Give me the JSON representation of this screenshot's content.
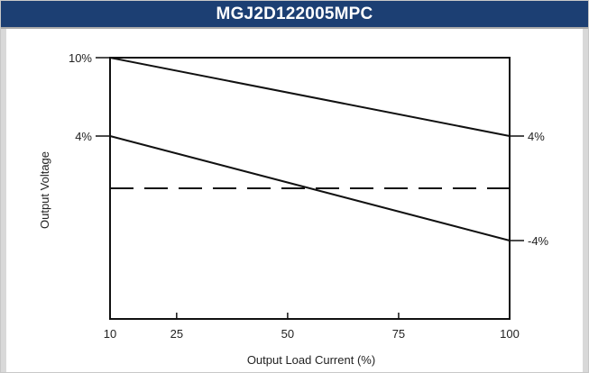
{
  "chart_data": {
    "type": "line",
    "title": "MGJ2D122005MPC",
    "xlabel": "Output Load Current (%)",
    "ylabel": "Output Voltage",
    "x_ticks": [
      "10",
      "25",
      "50",
      "75",
      "100"
    ],
    "x_range": [
      10,
      100
    ],
    "y_range": [
      -10,
      10
    ],
    "left_tick_labels": [
      {
        "label": "10%",
        "value": 10
      },
      {
        "label": "4%",
        "value": 4
      }
    ],
    "right_tick_labels": [
      {
        "label": "4%",
        "value": 4
      },
      {
        "label": "-4%",
        "value": -4
      }
    ],
    "series": [
      {
        "x": [
          10,
          100
        ],
        "y": [
          10,
          4
        ],
        "style": "solid"
      },
      {
        "x": [
          10,
          100
        ],
        "y": [
          4,
          -4
        ],
        "style": "solid"
      },
      {
        "x": [
          10,
          100
        ],
        "y": [
          0,
          0
        ],
        "style": "dashed"
      }
    ],
    "grid": false,
    "colors": {
      "header": "#1c3f73",
      "line": "#111111"
    }
  }
}
